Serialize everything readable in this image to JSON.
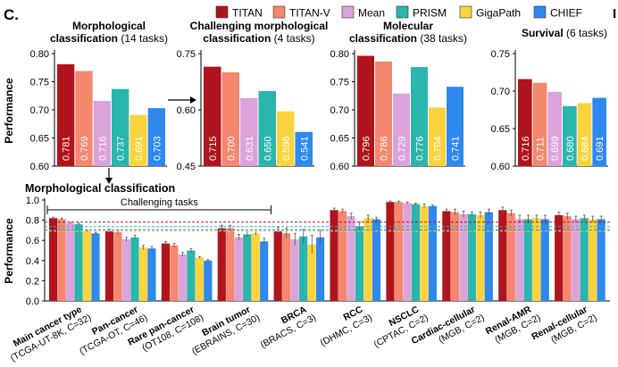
{
  "panel_label": "C.",
  "corner_label": "I",
  "legend": [
    {
      "name": "TITAN",
      "color": "#b0141c"
    },
    {
      "name": "TITAN-V",
      "color": "#f4876e"
    },
    {
      "name": "Mean",
      "color": "#dca3db"
    },
    {
      "name": "PRISM",
      "color": "#2ab5ad"
    },
    {
      "name": "GigaPath",
      "color": "#fad33e"
    },
    {
      "name": "CHIEF",
      "color": "#2e88ee"
    }
  ],
  "chart_data": [
    {
      "type": "bar",
      "title": "Morphological classification",
      "subtitle": "(14 tasks)",
      "ylabel": "Performance",
      "ylim": [
        0.6,
        0.8
      ],
      "yticks": [
        "0.60",
        "0.65",
        "0.70",
        "0.75",
        "0.80"
      ],
      "categories": [
        "TITAN",
        "TITAN-V",
        "Mean",
        "PRISM",
        "GigaPath",
        "CHIEF"
      ],
      "values": [
        0.781,
        0.769,
        0.716,
        0.737,
        0.691,
        0.703
      ],
      "labels": [
        "0.781",
        "0.769",
        "0.716",
        "0.737",
        "0.691",
        "0.703"
      ]
    },
    {
      "type": "bar",
      "title": "Challenging morphological classification",
      "subtitle": "(4 tasks)",
      "ylabel": "",
      "ylim": [
        0.45,
        0.75
      ],
      "yticks": [
        "0.45",
        "0.60",
        "0.75"
      ],
      "categories": [
        "TITAN",
        "TITAN-V",
        "Mean",
        "PRISM",
        "GigaPath",
        "CHIEF"
      ],
      "values": [
        0.715,
        0.7,
        0.631,
        0.65,
        0.596,
        0.541
      ],
      "labels": [
        "0.715",
        "0.700",
        "0.631",
        "0.650",
        "0.596",
        "0.541"
      ]
    },
    {
      "type": "bar",
      "title": "Molecular classification",
      "subtitle": "(38 tasks)",
      "ylabel": "",
      "ylim": [
        0.6,
        0.8
      ],
      "yticks": [
        "0.60",
        "0.65",
        "0.70",
        "0.75",
        "0.80"
      ],
      "categories": [
        "TITAN",
        "TITAN-V",
        "Mean",
        "PRISM",
        "GigaPath",
        "CHIEF"
      ],
      "values": [
        0.796,
        0.786,
        0.729,
        0.776,
        0.704,
        0.741
      ],
      "labels": [
        "0.796",
        "0.786",
        "0.729",
        "0.776",
        "0.704",
        "0.741"
      ]
    },
    {
      "type": "bar",
      "title": "Survival",
      "subtitle": "(6 tasks)",
      "ylabel": "",
      "ylim": [
        0.6,
        0.75
      ],
      "yticks": [
        "0.60",
        "0.65",
        "0.70",
        "0.75"
      ],
      "categories": [
        "TITAN",
        "TITAN-V",
        "Mean",
        "PRISM",
        "GigaPath",
        "CHIEF"
      ],
      "values": [
        0.716,
        0.711,
        0.699,
        0.68,
        0.684,
        0.691
      ],
      "labels": [
        "0.716",
        "0.711",
        "0.699",
        "0.680",
        "0.684",
        "0.691"
      ]
    },
    {
      "type": "bar",
      "title": "Morphological classification",
      "ylabel": "Performance",
      "ylim": [
        0.0,
        1.0
      ],
      "yticks": [
        "0.0",
        "0.2",
        "0.4",
        "0.6",
        "0.8",
        "1.0"
      ],
      "bracket_label": "Challenging tasks",
      "bracket_span": [
        0,
        3
      ],
      "series_names": [
        "TITAN",
        "TITAN-V",
        "Mean",
        "PRISM",
        "GigaPath",
        "CHIEF"
      ],
      "reference_lines": [
        {
          "series": "TITAN",
          "value": 0.781
        },
        {
          "series": "PRISM",
          "value": 0.737
        },
        {
          "series": "GigaPath",
          "value": 0.691
        },
        {
          "series": "CHIEF",
          "value": 0.703
        }
      ],
      "groups": [
        {
          "name": "Main cancer type",
          "detail": "(TCGA-UT-8K, C=32)",
          "values": [
            0.82,
            0.81,
            0.77,
            0.76,
            0.69,
            0.67
          ],
          "errors": [
            0.01,
            0.01,
            0.01,
            0.01,
            0.01,
            0.01
          ]
        },
        {
          "name": "Pan-cancer",
          "detail": "(TCGA-OT, C=46)",
          "values": [
            0.69,
            0.68,
            0.61,
            0.63,
            0.53,
            0.52
          ],
          "errors": [
            0.02,
            0.02,
            0.02,
            0.02,
            0.02,
            0.02
          ]
        },
        {
          "name": "Rare pan-cancer",
          "detail": "(OT108, C=108)",
          "values": [
            0.57,
            0.55,
            0.46,
            0.5,
            0.43,
            0.4
          ],
          "errors": [
            0.02,
            0.02,
            0.02,
            0.02,
            0.01,
            0.01
          ]
        },
        {
          "name": "Brain tumor",
          "detail": "(EBRAINS, C=30)",
          "values": [
            0.72,
            0.72,
            0.63,
            0.66,
            0.67,
            0.59
          ],
          "errors": [
            0.03,
            0.03,
            0.03,
            0.03,
            0.02,
            0.03
          ]
        },
        {
          "name": "BRCA",
          "detail": "(BRACS, C=3)",
          "values": [
            0.69,
            0.67,
            0.61,
            0.64,
            0.56,
            0.63
          ],
          "errors": [
            0.04,
            0.05,
            0.06,
            0.07,
            0.09,
            0.07
          ]
        },
        {
          "name": "RCC",
          "detail": "(DHMC, C=3)",
          "values": [
            0.9,
            0.89,
            0.84,
            0.74,
            0.82,
            0.81
          ],
          "errors": [
            0.02,
            0.02,
            0.03,
            0.04,
            0.03,
            0.02
          ]
        },
        {
          "name": "NSCLC",
          "detail": "(CPTAC, C=2)",
          "values": [
            0.98,
            0.98,
            0.97,
            0.96,
            0.94,
            0.94
          ],
          "errors": [
            0.01,
            0.01,
            0.01,
            0.01,
            0.02,
            0.01
          ]
        },
        {
          "name": "Cardiac-cellular",
          "detail": "(MGB, C=2)",
          "values": [
            0.89,
            0.88,
            0.86,
            0.86,
            0.85,
            0.88
          ],
          "errors": [
            0.02,
            0.03,
            0.03,
            0.02,
            0.03,
            0.03
          ]
        },
        {
          "name": "Renal-AMR",
          "detail": "(MGB, C=2)",
          "values": [
            0.9,
            0.87,
            0.81,
            0.81,
            0.82,
            0.81
          ],
          "errors": [
            0.03,
            0.03,
            0.04,
            0.04,
            0.03,
            0.04
          ]
        },
        {
          "name": "Renal-cellular",
          "detail": "(MGB, C=2)",
          "values": [
            0.85,
            0.84,
            0.81,
            0.82,
            0.81,
            0.81
          ],
          "errors": [
            0.03,
            0.03,
            0.03,
            0.03,
            0.03,
            0.03
          ]
        }
      ]
    }
  ]
}
